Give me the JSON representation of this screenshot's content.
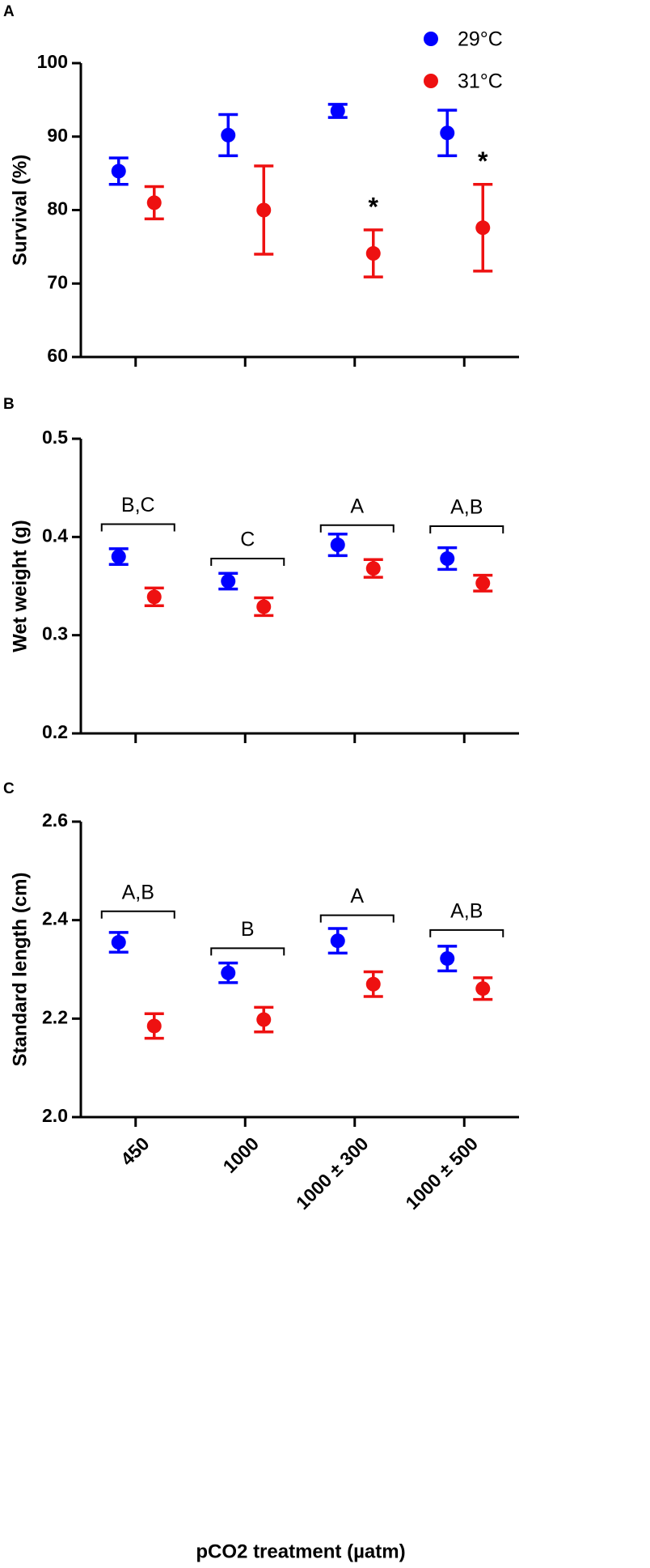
{
  "chart_data": [
    {
      "type": "dot",
      "label": "A",
      "ylabel": "Survival (%)",
      "categories": [
        null,
        null,
        null,
        null
      ],
      "ylim": [
        60,
        100
      ],
      "yticks": [
        60,
        70,
        80,
        90,
        100
      ],
      "legend": "upper right",
      "series": [
        {
          "name": "29°C",
          "color": "#0000ff",
          "values": [
            85.3,
            90.2,
            93.5,
            90.5
          ],
          "errors": [
            1.8,
            2.8,
            0.9,
            3.1
          ]
        },
        {
          "name": "31°C",
          "color": "#ee1111",
          "values": [
            81,
            80,
            74.1,
            77.6
          ],
          "errors": [
            2.2,
            6,
            3.2,
            5.9
          ],
          "significance": [
            null,
            null,
            "*",
            "*"
          ]
        }
      ]
    },
    {
      "type": "dot",
      "label": "B",
      "ylabel": "Wet weight (g)",
      "categories": [
        null,
        null,
        null,
        null
      ],
      "ylim": [
        0.2,
        0.5
      ],
      "yticks": [
        0.2,
        0.3,
        0.4,
        0.5
      ],
      "series": [
        {
          "color": "#0000ff",
          "values": [
            0.38,
            0.355,
            0.392,
            0.378
          ],
          "errors": [
            0.008,
            0.008,
            0.011,
            0.011
          ]
        },
        {
          "color": "#ee1111",
          "values": [
            0.339,
            0.329,
            0.368,
            0.353
          ],
          "errors": [
            0.009,
            0.009,
            0.009,
            0.008
          ]
        }
      ],
      "groups": [
        "B,C",
        "C",
        "A",
        "A,B"
      ],
      "group_y": [
        0.413,
        0.378,
        0.412,
        0.411
      ]
    },
    {
      "type": "dot",
      "label": "C",
      "ylabel": "Standard length (cm)",
      "xlabel": "pCO2 treatment (µatm)",
      "categories": [
        "450",
        "1000",
        "1000 ± 300",
        "1000 ± 500"
      ],
      "ylim": [
        2,
        2.6
      ],
      "yticks": [
        {
          "value": 2,
          "label": "2.0"
        },
        2.2,
        2.4,
        2.6
      ],
      "series": [
        {
          "color": "#0000ff",
          "values": [
            2.355,
            2.293,
            2.358,
            2.322
          ],
          "errors": [
            0.02,
            0.02,
            0.025,
            0.025
          ]
        },
        {
          "color": "#ee1111",
          "values": [
            2.185,
            2.198,
            2.27,
            2.261
          ],
          "errors": [
            0.025,
            0.025,
            0.025,
            0.022
          ]
        }
      ],
      "groups": [
        "A,B",
        "B",
        "A",
        "A,B"
      ],
      "group_y": [
        2.418,
        2.343,
        2.41,
        2.38
      ]
    }
  ]
}
